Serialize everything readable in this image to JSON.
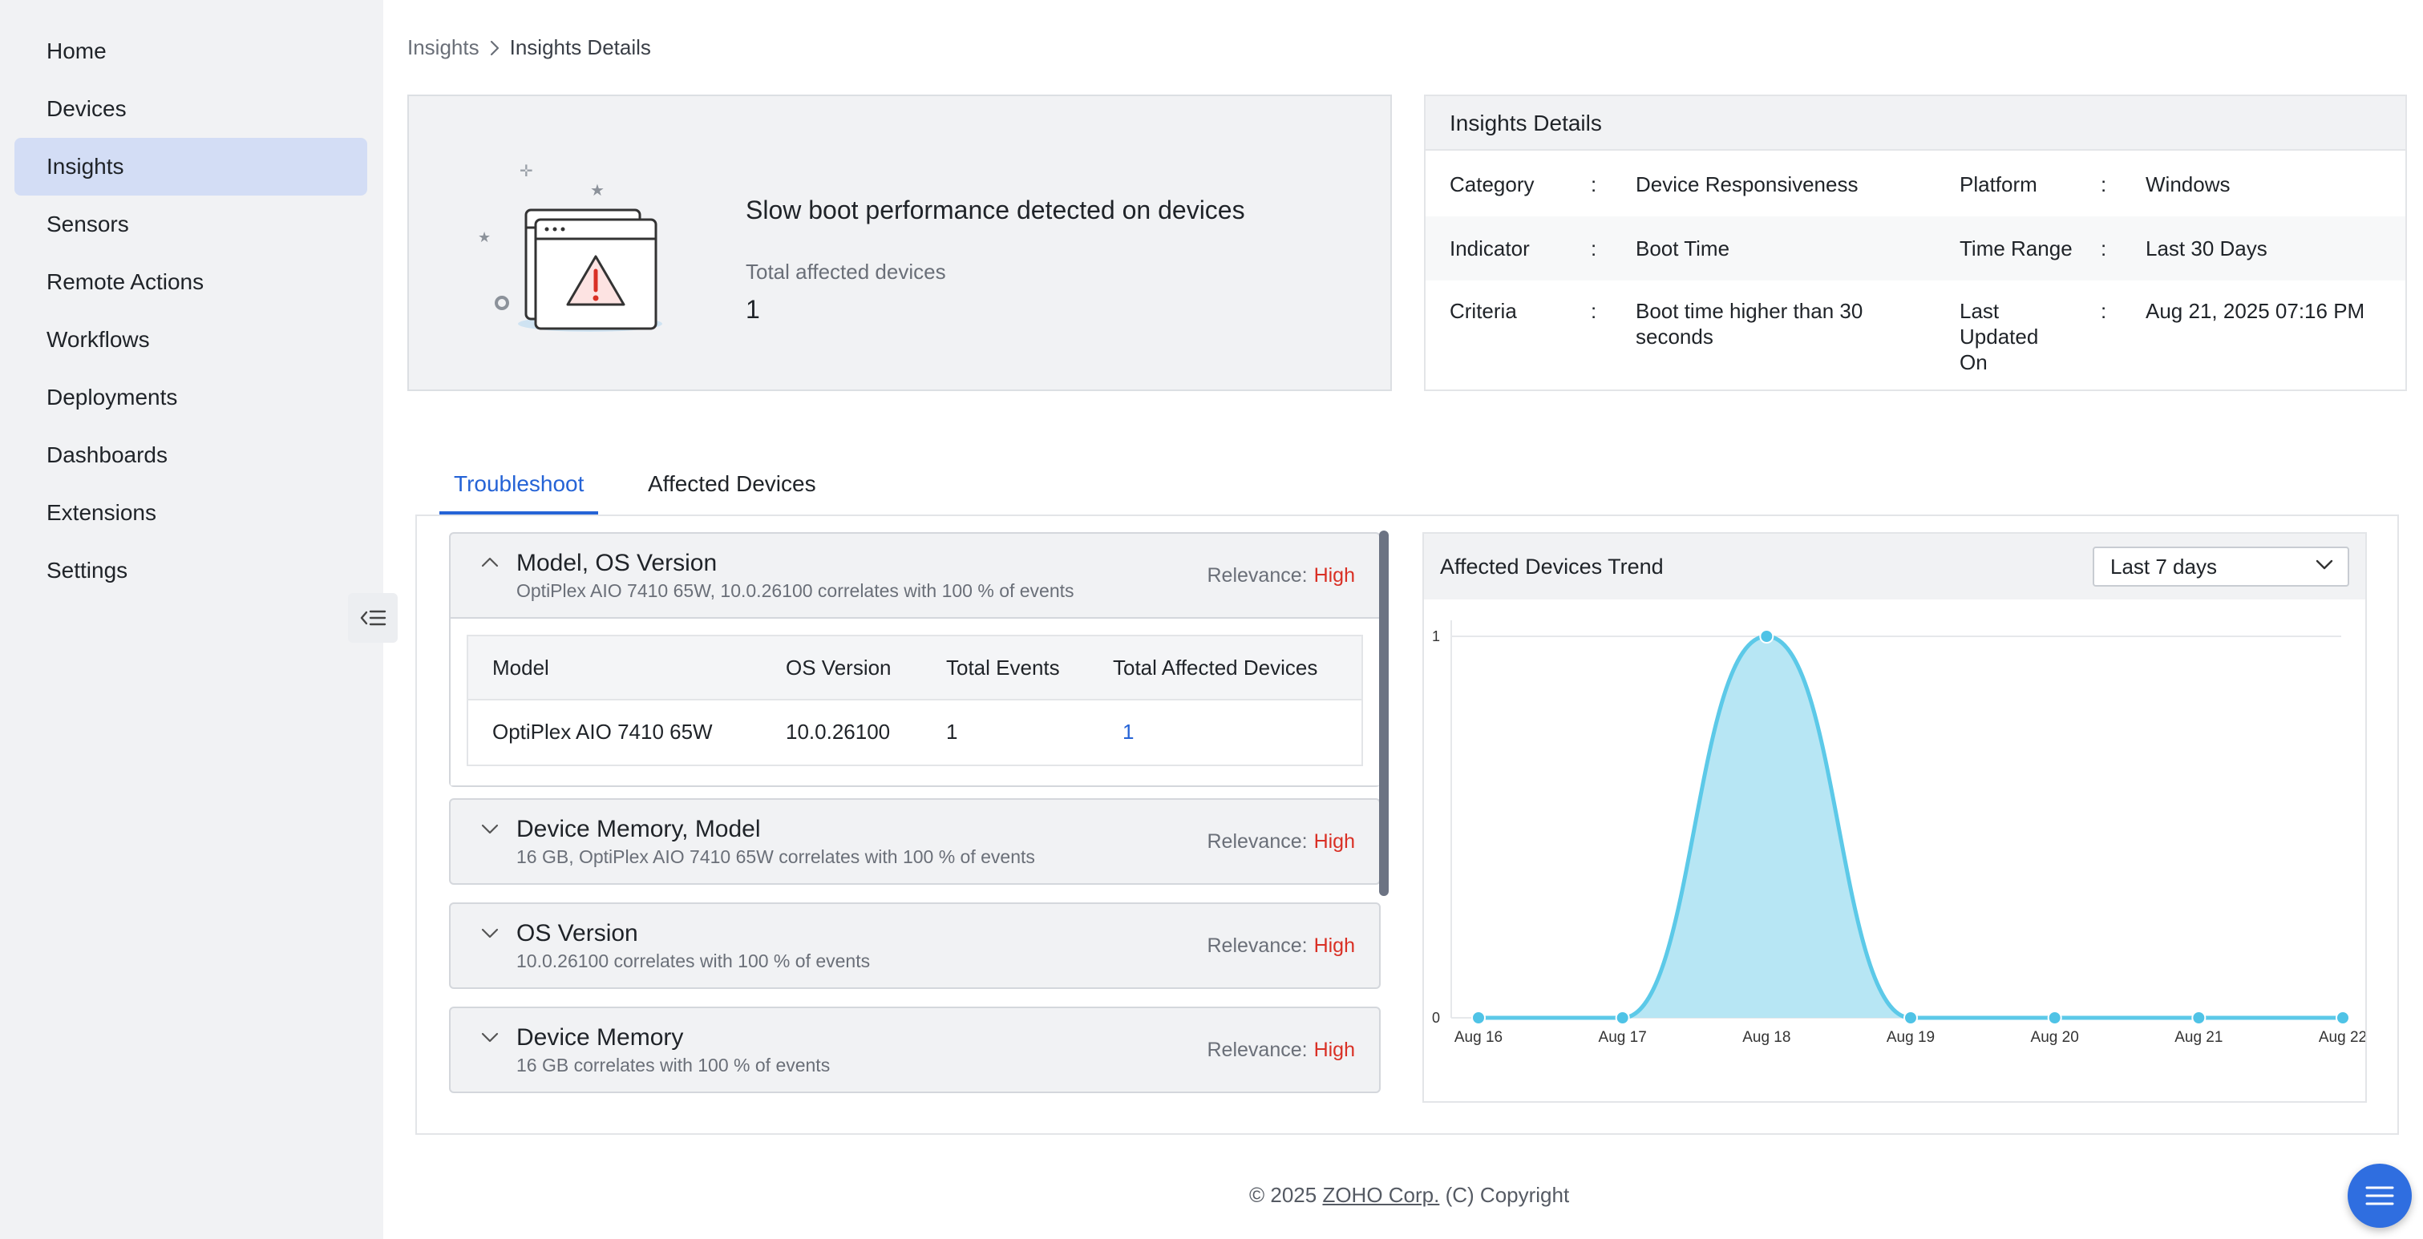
{
  "sidebar": {
    "items": [
      {
        "label": "Home"
      },
      {
        "label": "Devices"
      },
      {
        "label": "Insights",
        "active": true
      },
      {
        "label": "Sensors"
      },
      {
        "label": "Remote Actions"
      },
      {
        "label": "Workflows"
      },
      {
        "label": "Deployments"
      },
      {
        "label": "Dashboards"
      },
      {
        "label": "Extensions"
      },
      {
        "label": "Settings"
      }
    ],
    "collapse_icon": "collapse-menu-icon"
  },
  "breadcrumb": {
    "root": "Insights",
    "current": "Insights Details"
  },
  "summary": {
    "title": "Slow boot performance detected on devices",
    "affected_label": "Total affected devices",
    "affected_value": "1"
  },
  "details": {
    "heading": "Insights Details",
    "separator": ":",
    "rows": [
      {
        "label1": "Category",
        "value1": "Device Responsiveness",
        "label2": "Platform",
        "value2": "Windows"
      },
      {
        "label1": "Indicator",
        "value1": "Boot Time",
        "label2": "Time Range",
        "value2": "Last 30 Days"
      },
      {
        "label1": "Criteria",
        "value1_lines": [
          "Boot time higher than 30",
          "seconds"
        ],
        "label2_lines": [
          "Last",
          "Updated",
          "On"
        ],
        "value2": "Aug 21, 2025 07:16 PM"
      }
    ]
  },
  "tabs": [
    {
      "label": "Troubleshoot",
      "active": true
    },
    {
      "label": "Affected Devices"
    }
  ],
  "relevance_label": "Relevance:",
  "accordion": [
    {
      "title": "Model, OS Version",
      "subtitle": "OptiPlex AIO 7410 65W, 10.0.26100 correlates with 100 % of events",
      "relevance": "High",
      "expanded": true,
      "table": {
        "headers": [
          "Model",
          "OS Version",
          "Total Events",
          "Total Affected Devices"
        ],
        "rows": [
          [
            "OptiPlex AIO 7410 65W",
            "10.0.26100",
            "1",
            "1"
          ]
        ]
      }
    },
    {
      "title": "Device Memory, Model",
      "subtitle": "16 GB, OptiPlex AIO 7410 65W correlates with 100 % of events",
      "relevance": "High"
    },
    {
      "title": "OS Version",
      "subtitle": "10.0.26100 correlates with 100 % of events",
      "relevance": "High"
    },
    {
      "title": "Device Memory",
      "subtitle": "16 GB correlates with 100 % of events",
      "relevance": "High"
    }
  ],
  "trend": {
    "title": "Affected Devices Trend",
    "range_selected": "Last 7 days"
  },
  "chart_data": {
    "type": "area",
    "title": "Affected Devices Trend",
    "categories": [
      "Aug 16",
      "Aug 17",
      "Aug 18",
      "Aug 19",
      "Aug 20",
      "Aug 21",
      "Aug 22"
    ],
    "values": [
      0,
      0,
      1,
      0,
      0,
      0,
      0
    ],
    "yticks": [
      "0",
      "1"
    ],
    "ylim": [
      0,
      1
    ],
    "grid": true,
    "colors": {
      "fill": "#b3e5f3",
      "line": "#5cc9e8",
      "point": "#4fc3e6"
    }
  },
  "footer": {
    "prefix": "© 2025 ",
    "brand": "ZOHO Corp.",
    "suffix": " (C) Copyright"
  },
  "colors": {
    "accent": "#2563d6",
    "high": "#d93025",
    "fab": "#2f6ee0"
  }
}
